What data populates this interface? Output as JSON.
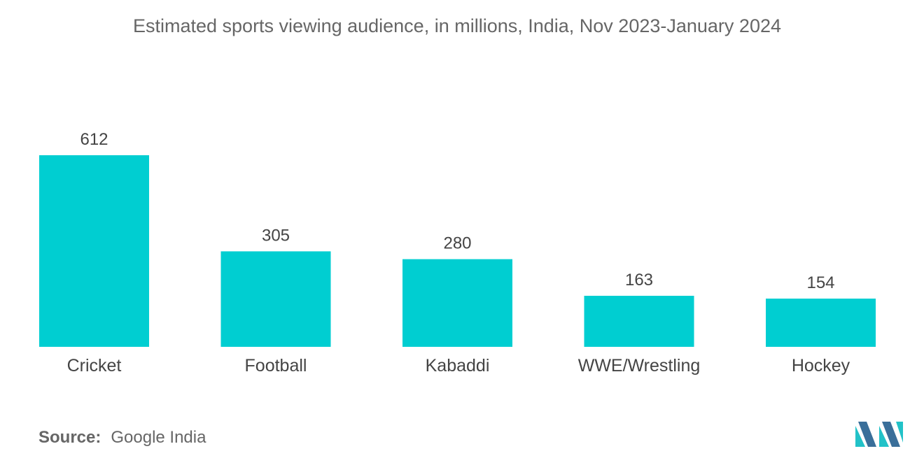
{
  "chart_data": {
    "type": "bar",
    "title": "Estimated sports viewing audience, in millions, India, Nov 2023-January 2024",
    "categories": [
      "Cricket",
      "Football",
      "Kabaddi",
      "WWE/Wrestling",
      "Hockey"
    ],
    "values": [
      612,
      305,
      280,
      163,
      154
    ],
    "data_labels": [
      "612",
      "305",
      "280",
      "163",
      "154"
    ],
    "xlabel": "",
    "ylabel": "",
    "ylim": [
      0,
      612
    ],
    "grid": false,
    "legend": "none",
    "bar_color": "#00CED1"
  },
  "source": {
    "label": "Source:",
    "value": "Google India"
  },
  "colors": {
    "title_text": "#666666",
    "value_text": "#444444",
    "category_text": "#444444",
    "logo_dark": "#3a6f9a",
    "logo_light": "#22c2c8"
  },
  "logo": {
    "icon": "mordor-intelligence-logo-icon"
  }
}
